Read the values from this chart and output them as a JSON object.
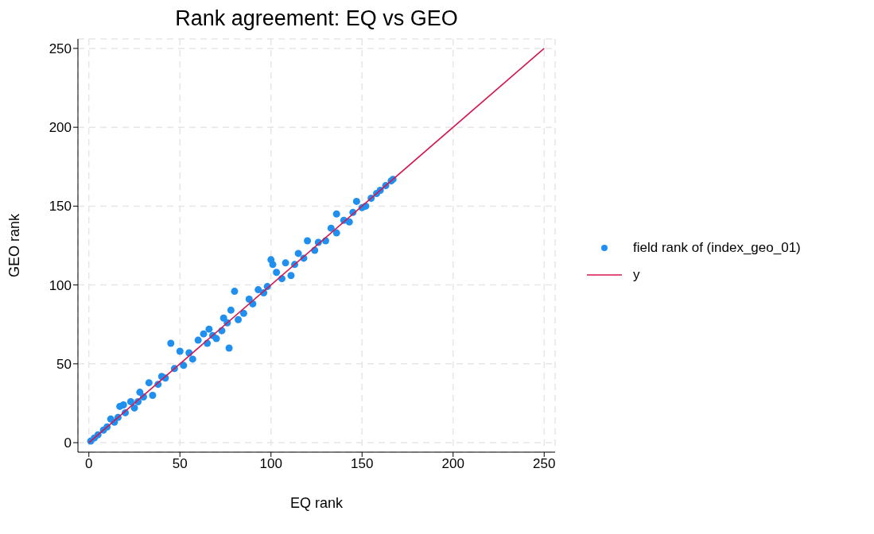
{
  "chart_data": {
    "type": "scatter",
    "title": "Rank agreement: EQ vs GEO",
    "xlabel": "EQ rank",
    "ylabel": "GEO rank",
    "xlim": [
      -6,
      256
    ],
    "ylim": [
      -6,
      256
    ],
    "xticks": [
      0,
      50,
      100,
      150,
      200,
      250
    ],
    "yticks": [
      0,
      50,
      100,
      150,
      200,
      250
    ],
    "grid": true,
    "legend": "right",
    "marker": "circle",
    "series": [
      {
        "name": "field rank of (index_geo_01)",
        "color": "#1f8ff0",
        "x": [
          1,
          3,
          5,
          8,
          10,
          12,
          14,
          16,
          17,
          19,
          20,
          23,
          25,
          27,
          28,
          30,
          33,
          35,
          38,
          40,
          42,
          45,
          47,
          50,
          52,
          55,
          57,
          60,
          63,
          65,
          66,
          68,
          70,
          73,
          74,
          76,
          77,
          78,
          80,
          82,
          85,
          88,
          90,
          93,
          96,
          98,
          100,
          101,
          103,
          106,
          108,
          111,
          113,
          115,
          118,
          120,
          124,
          126,
          130,
          133,
          136,
          136,
          140,
          143,
          145,
          147,
          150,
          152,
          155,
          158,
          160,
          163,
          166,
          167
        ],
        "values": [
          1,
          3,
          5,
          8,
          10,
          15,
          13,
          16,
          23,
          24,
          19,
          26,
          22,
          26,
          32,
          29,
          38,
          30,
          37,
          42,
          41,
          63,
          47,
          58,
          49,
          57,
          53,
          65,
          69,
          63,
          72,
          68,
          66,
          71,
          79,
          76,
          60,
          84,
          96,
          78,
          82,
          91,
          88,
          97,
          95,
          99,
          116,
          113,
          108,
          104,
          114,
          106,
          113,
          120,
          117,
          128,
          122,
          127,
          128,
          136,
          133,
          145,
          141,
          140,
          146,
          153,
          149,
          150,
          155,
          158,
          160,
          163,
          166,
          167
        ]
      },
      {
        "name": "y",
        "type": "line",
        "color": "#d6174f",
        "x": [
          0,
          250
        ],
        "values": [
          0,
          250
        ],
        "marker": "none"
      }
    ]
  }
}
